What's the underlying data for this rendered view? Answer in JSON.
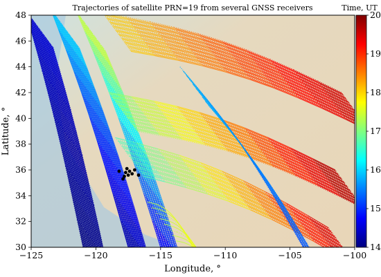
{
  "chart_data": {
    "type": "line",
    "title": "Trajectories of satellite PRN=19 from several GNSS receivers",
    "xlabel": "Longitude, °",
    "ylabel": "Latitude, °",
    "xlim": [
      -125,
      -100
    ],
    "ylim": [
      30,
      48
    ],
    "x_ticks": [
      -125,
      -120,
      -115,
      -110,
      -105,
      -100
    ],
    "x_tick_labels": [
      "−125",
      "−120",
      "−115",
      "−110",
      "−105",
      "−100"
    ],
    "y_ticks": [
      30,
      32,
      34,
      36,
      38,
      40,
      42,
      44,
      46,
      48
    ],
    "y_tick_labels": [
      "30",
      "32",
      "34",
      "36",
      "38",
      "40",
      "42",
      "44",
      "46",
      "48"
    ],
    "colorbar": {
      "title": "Time, UT",
      "range": [
        14,
        20
      ],
      "ticks": [
        14,
        15,
        16,
        17,
        18,
        19,
        20
      ],
      "tick_labels": [
        "14",
        "15",
        "16",
        "17",
        "18",
        "19",
        "20"
      ],
      "colormap": "jet"
    },
    "receivers_cluster": {
      "points": [
        [
          -117.7,
          35.8
        ],
        [
          -117.4,
          35.9
        ],
        [
          -117.5,
          35.6
        ],
        [
          -117.2,
          35.7
        ],
        [
          -117.8,
          35.5
        ],
        [
          -117.0,
          36.0
        ],
        [
          -117.6,
          36.1
        ],
        [
          -116.7,
          35.6
        ],
        [
          -117.9,
          35.3
        ],
        [
          -118.2,
          35.9
        ]
      ]
    },
    "trajectory_groups": [
      {
        "lon_start": -125.5,
        "lon_end": -121.0,
        "lat_start": 48.5,
        "lat_end": 30,
        "t_start": 14.5,
        "t_end": 14.0,
        "count": 40
      },
      {
        "lon_start": -123.5,
        "lon_end": -117.5,
        "lat_start": 48.5,
        "lat_end": 30,
        "t_start": 16.0,
        "t_end": 14.2,
        "count": 34
      },
      {
        "lon_start": -121.5,
        "lon_end": -115.0,
        "lat_start": 48.3,
        "lat_end": 30,
        "t_start": 17.5,
        "t_end": 14.6,
        "count": 24
      },
      {
        "lon_start": -119.5,
        "lon_end": -101.0,
        "lat_start": 48.2,
        "lat_end": 42.0,
        "t_start": 18.0,
        "t_end": 19.6,
        "count": 30
      },
      {
        "lon_start": -119.0,
        "lon_end": -101.5,
        "lat_start": 42.0,
        "lat_end": 36.0,
        "t_start": 17.0,
        "t_end": 19.8,
        "count": 30
      },
      {
        "lon_start": -118.5,
        "lon_end": -102.0,
        "lat_start": 38.5,
        "lat_end": 31.5,
        "t_start": 16.5,
        "t_end": 19.6,
        "count": 24
      },
      {
        "lon_start": -113.5,
        "lon_end": -104.0,
        "lat_start": 44.0,
        "lat_end": 30.0,
        "t_start": 15.8,
        "t_end": 15.2,
        "count": 10
      },
      {
        "lon_start": -116.0,
        "lon_end": -112.5,
        "lat_start": 33.5,
        "lat_end": 30.0,
        "t_start": 17.3,
        "t_end": 17.8,
        "count": 8
      }
    ]
  }
}
